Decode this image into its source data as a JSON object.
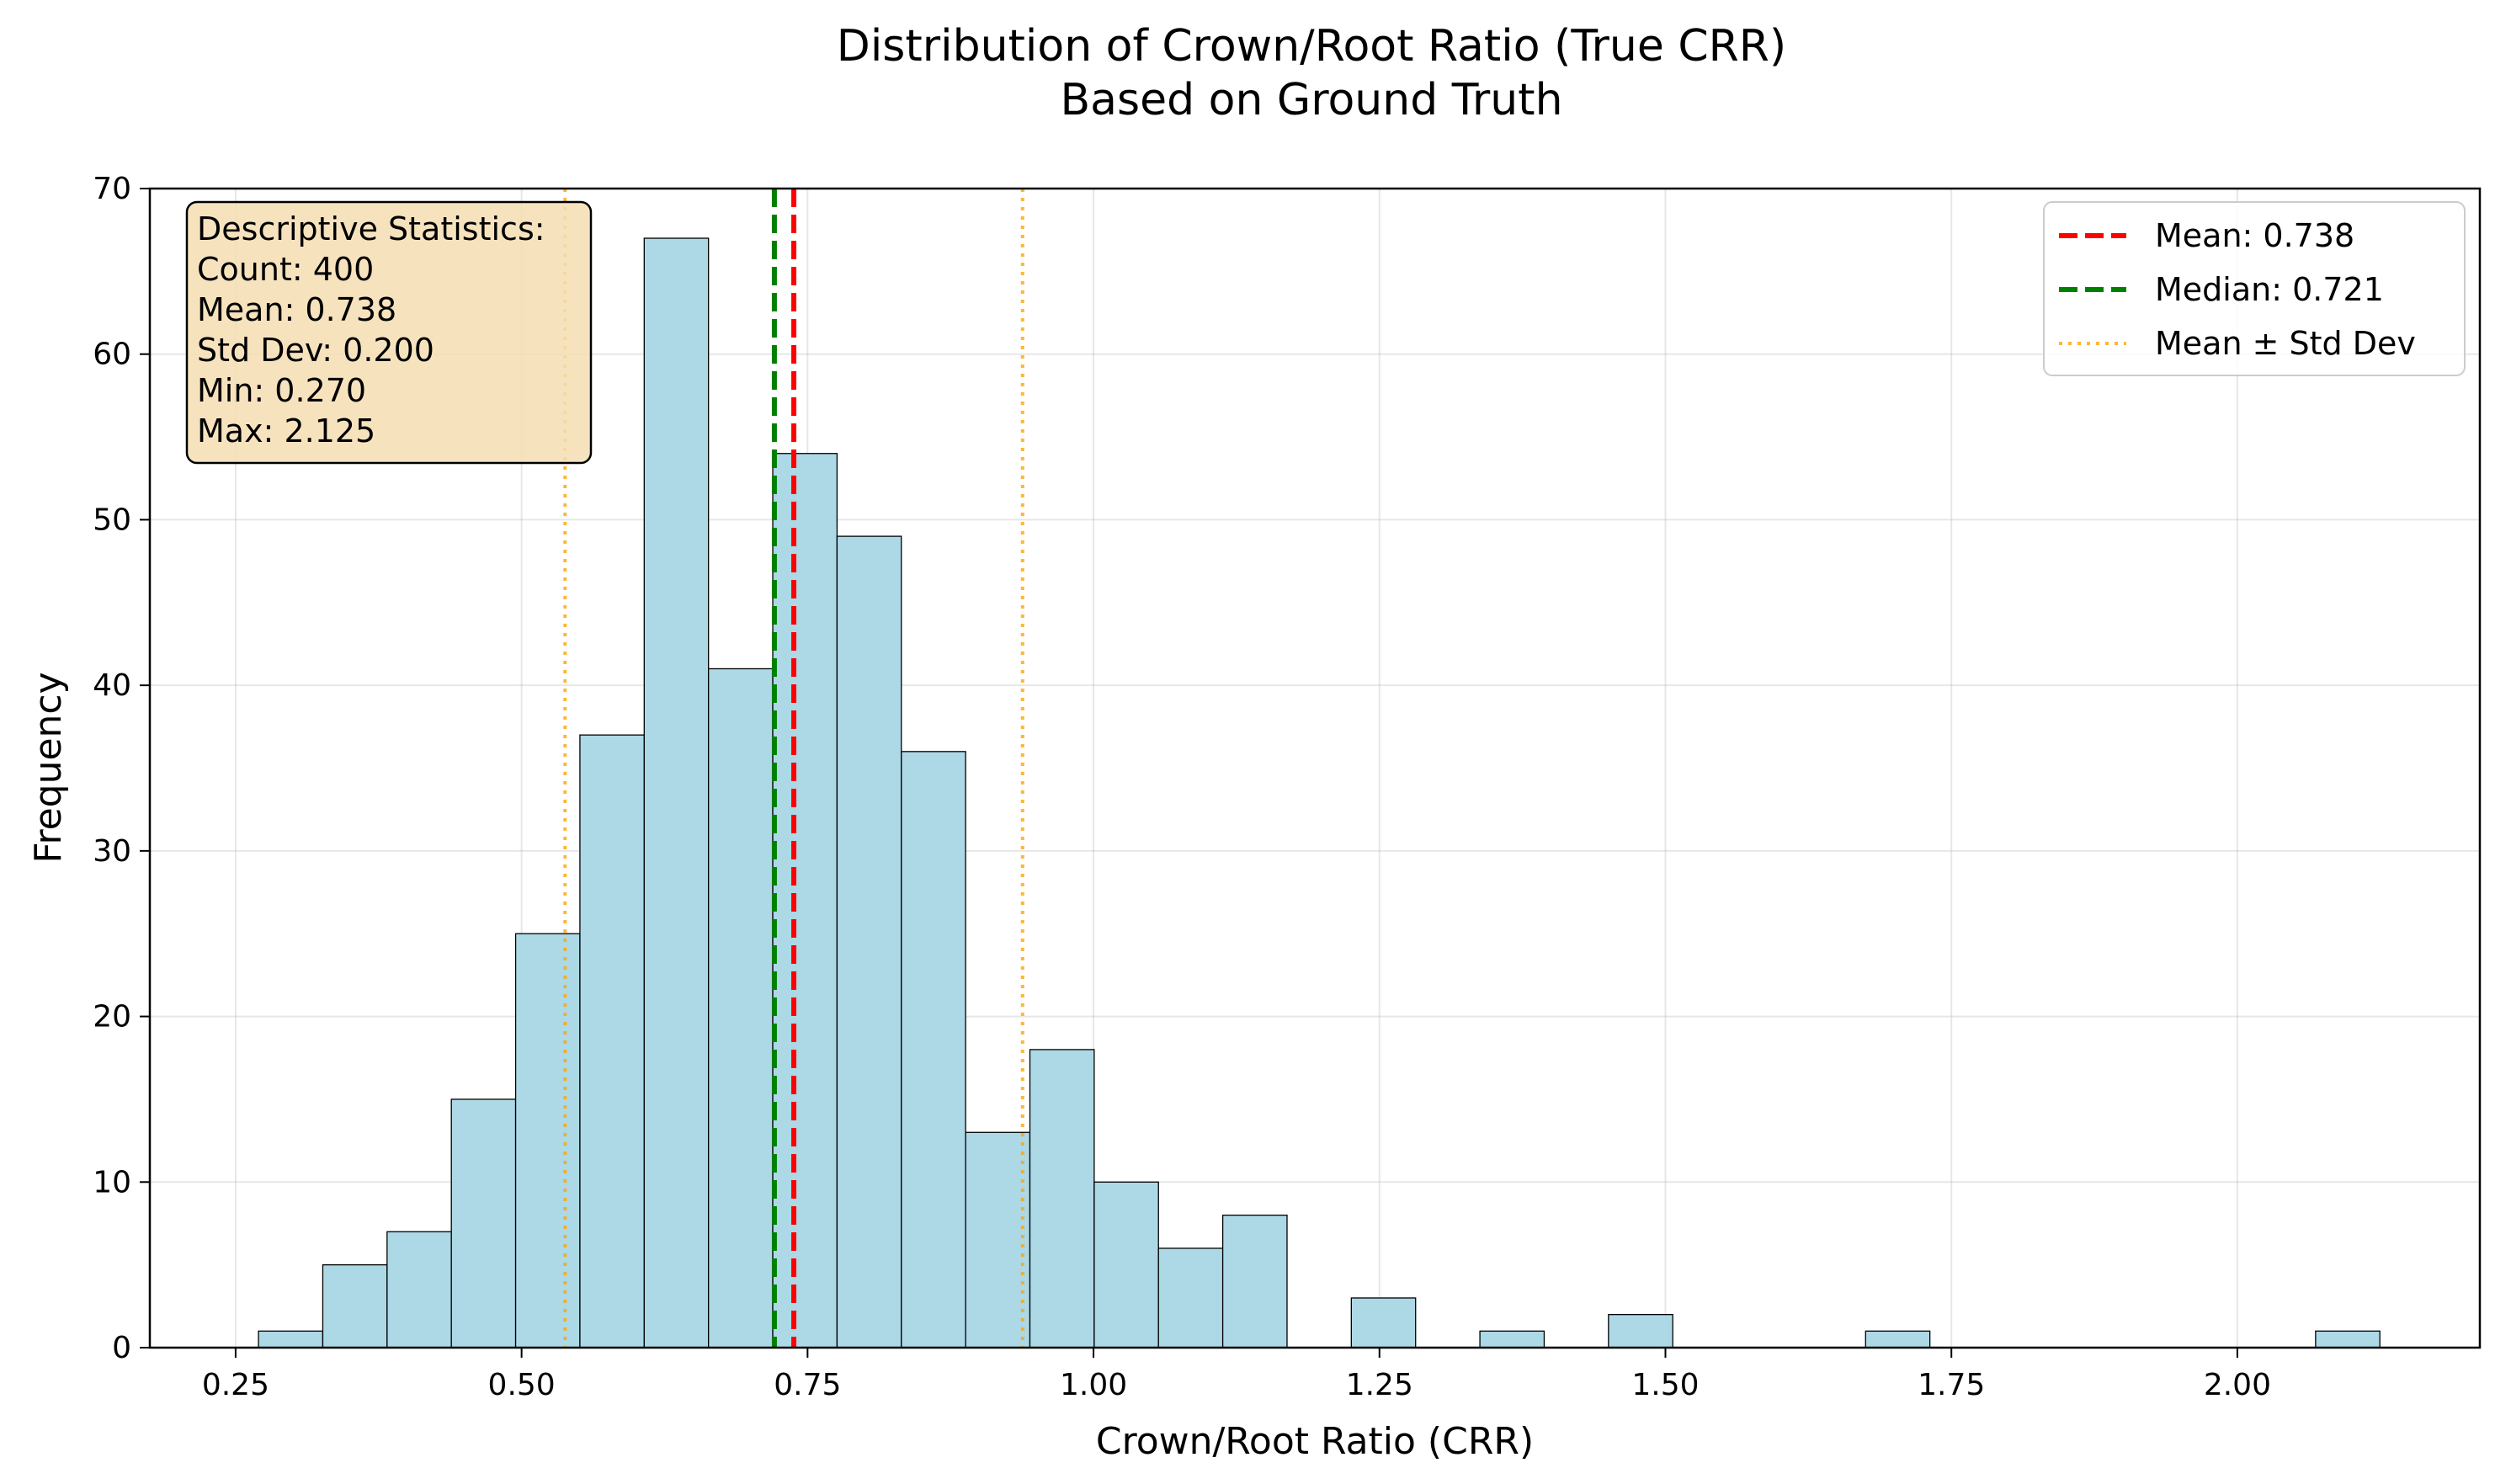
{
  "chart_data": {
    "type": "bar",
    "title": "Distribution of Crown/Root Ratio (True CRR)",
    "subtitle": "Based on Ground Truth",
    "xlabel": "Crown/Root Ratio (CRR)",
    "ylabel": "Frequency",
    "xlim": [
      0.175,
      2.212
    ],
    "ylim": [
      0,
      70
    ],
    "grid": true,
    "x_ticks": [
      0.25,
      0.5,
      0.75,
      1.0,
      1.25,
      1.5,
      1.75,
      2.0
    ],
    "x_tick_labels": [
      "0.25",
      "0.50",
      "0.75",
      "1.00",
      "1.25",
      "1.50",
      "1.75",
      "2.00"
    ],
    "y_ticks": [
      0,
      10,
      20,
      30,
      40,
      50,
      60,
      70
    ],
    "y_tick_labels": [
      "0",
      "10",
      "20",
      "30",
      "40",
      "50",
      "60",
      "70"
    ],
    "bin_start": 0.27,
    "bin_width": 0.0562,
    "bin_counts": [
      1,
      5,
      7,
      15,
      25,
      37,
      67,
      41,
      54,
      49,
      36,
      13,
      18,
      10,
      6,
      8,
      0,
      3,
      0,
      1,
      0,
      2,
      0,
      0,
      0,
      1,
      0,
      0,
      0,
      0,
      0,
      0,
      1
    ],
    "bar_color": "#add8e6",
    "bar_edge_color": "#000000",
    "lines": [
      {
        "label": "Mean: 0.738",
        "x": 0.738,
        "color": "#ff0000",
        "style": "dashed"
      },
      {
        "label": "Median: 0.721",
        "x": 0.721,
        "color": "#008000",
        "style": "dashed"
      },
      {
        "label": "Mean ± Std Dev",
        "x": 0.538,
        "color": "#ffa500",
        "style": "dotted"
      },
      {
        "label": "",
        "x": 0.938,
        "color": "#ffa500",
        "style": "dotted"
      }
    ],
    "legend_position": "top-right",
    "stats_box": {
      "heading": "Descriptive Statistics:",
      "count": "Count: 400",
      "mean": "Mean: 0.738",
      "std": "Std Dev: 0.200",
      "min": "Min: 0.270",
      "max": "Max: 2.125",
      "background": "#f5deb3"
    }
  }
}
